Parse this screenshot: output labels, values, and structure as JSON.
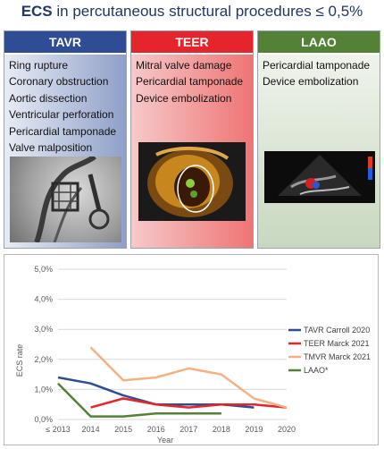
{
  "title": {
    "bold": "ECS",
    "rest": " in percutaneous structural procedures ≤ 0,5%"
  },
  "columns": {
    "tavr": {
      "label": "TAVR",
      "items": [
        "Ring rupture",
        "Coronary obstruction",
        "Aortic dissection",
        "Ventricular perforation",
        "Pericardial tamponade",
        "Valve malposition"
      ]
    },
    "teer": {
      "label": "TEER",
      "items": [
        "Mitral valve damage",
        "Pericardial tamponade",
        "Device embolization"
      ]
    },
    "laao": {
      "label": "LAAO",
      "items": [
        "Pericardial tamponade",
        "Device embolization"
      ]
    }
  },
  "colors": {
    "tavr": "#2f4d94",
    "teer": "#e5252b",
    "laao": "#538135",
    "tmvr": "#f4b183"
  },
  "chart_data": {
    "type": "line",
    "xlabel": "Year",
    "ylabel": "ECS rate",
    "categories": [
      "≤ 2013",
      "2014",
      "2015",
      "2016",
      "2017",
      "2018",
      "2019",
      "2020"
    ],
    "yticks": [
      "0,0%",
      "1,0%",
      "2,0%",
      "3,0%",
      "4,0%",
      "5,0%"
    ],
    "ylim": [
      0,
      5
    ],
    "grid": true,
    "legend_position": "right",
    "series": [
      {
        "name": "TAVR Carroll 2020",
        "color": "#2f4d94",
        "values": [
          1.4,
          1.2,
          0.8,
          0.5,
          0.5,
          0.5,
          0.4,
          null
        ]
      },
      {
        "name": "TEER Marck 2021",
        "color": "#e5252b",
        "values": [
          null,
          0.4,
          0.7,
          0.5,
          0.4,
          0.5,
          0.5,
          0.4
        ]
      },
      {
        "name": "TMVR Marck 2021",
        "color": "#f4b183",
        "values": [
          null,
          2.4,
          1.3,
          1.4,
          1.7,
          1.5,
          0.7,
          0.4
        ]
      },
      {
        "name": "LAAO*",
        "color": "#538135",
        "values": [
          1.2,
          0.1,
          0.1,
          0.2,
          0.2,
          0.2,
          null,
          null
        ]
      }
    ]
  }
}
